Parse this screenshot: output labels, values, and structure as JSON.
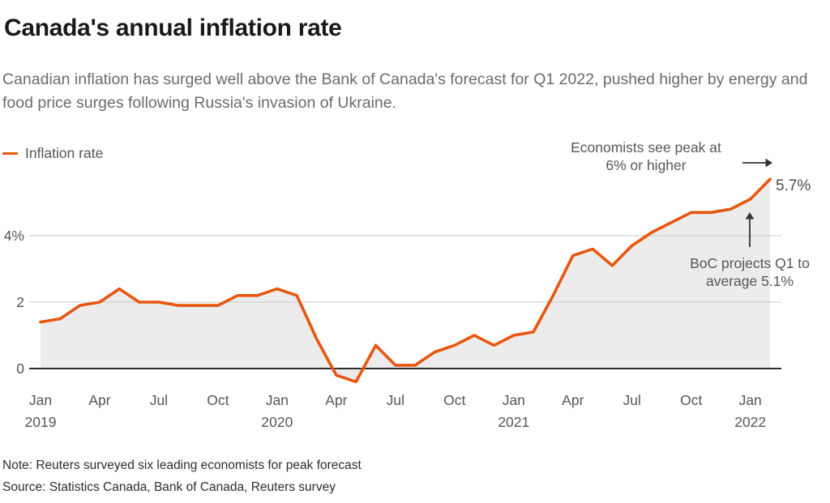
{
  "colors": {
    "line": "#e8560e",
    "area_fill": "#ececec",
    "grid": "#c9c9c9",
    "zero_line": "#2d2d2d",
    "arrow": "#333333",
    "title": "#191919",
    "subtitle": "#6b6b6b",
    "axis_labels": "#565656"
  },
  "header": {
    "title": "Canada's annual inflation rate",
    "subtitle": "Canadian inflation has surged well above the Bank of Canada's forecast for Q1 2022, pushed higher by energy and food price surges following Russia's invasion of Ukraine."
  },
  "legend": {
    "label": "Inflation rate"
  },
  "annotations": {
    "peak": {
      "line1": "Economists see peak at",
      "line2": "6% or higher"
    },
    "end_label": "5.7%",
    "boc": {
      "line1": "BoC projects Q1 to",
      "line2": "average 5.1%"
    }
  },
  "footer": {
    "note": "Note: Reuters surveyed six leading economists for peak forecast",
    "source": "Source: Statistics Canada, Bank of Canada, Reuters survey"
  },
  "chart_data": {
    "type": "line",
    "title": "Canada's annual inflation rate",
    "area_fill_to_zero": true,
    "grid": "horizontal-only",
    "legend_position": "top-left",
    "ylim": [
      -0.6,
      6.2
    ],
    "x": {
      "frequency": "monthly",
      "start": "2019-01",
      "end": "2022-02"
    },
    "series": [
      {
        "name": "Inflation rate",
        "unit": "%",
        "values": [
          1.4,
          1.5,
          1.9,
          2.0,
          2.4,
          2.0,
          2.0,
          1.9,
          1.9,
          1.9,
          2.2,
          2.2,
          2.4,
          2.2,
          0.9,
          -0.2,
          -0.4,
          0.7,
          0.1,
          0.1,
          0.5,
          0.7,
          1.0,
          0.7,
          1.0,
          1.1,
          2.2,
          3.4,
          3.6,
          3.1,
          3.7,
          4.1,
          4.4,
          4.7,
          4.7,
          4.8,
          5.1,
          5.7
        ]
      }
    ],
    "last_value_label": "5.7%",
    "y_ticks": [
      {
        "value": 0,
        "label": "0"
      },
      {
        "value": 2,
        "label": "2"
      },
      {
        "value": 4,
        "label": "4%"
      }
    ],
    "x_ticks": [
      {
        "index": 0,
        "month": "Jan",
        "year": "2019"
      },
      {
        "index": 3,
        "month": "Apr"
      },
      {
        "index": 6,
        "month": "Jul"
      },
      {
        "index": 9,
        "month": "Oct"
      },
      {
        "index": 12,
        "month": "Jan",
        "year": "2020"
      },
      {
        "index": 15,
        "month": "Apr"
      },
      {
        "index": 18,
        "month": "Jul"
      },
      {
        "index": 21,
        "month": "Oct"
      },
      {
        "index": 24,
        "month": "Jan",
        "year": "2021"
      },
      {
        "index": 27,
        "month": "Apr"
      },
      {
        "index": 30,
        "month": "Jul"
      },
      {
        "index": 33,
        "month": "Oct"
      },
      {
        "index": 36,
        "month": "Jan",
        "year": "2022"
      }
    ]
  }
}
